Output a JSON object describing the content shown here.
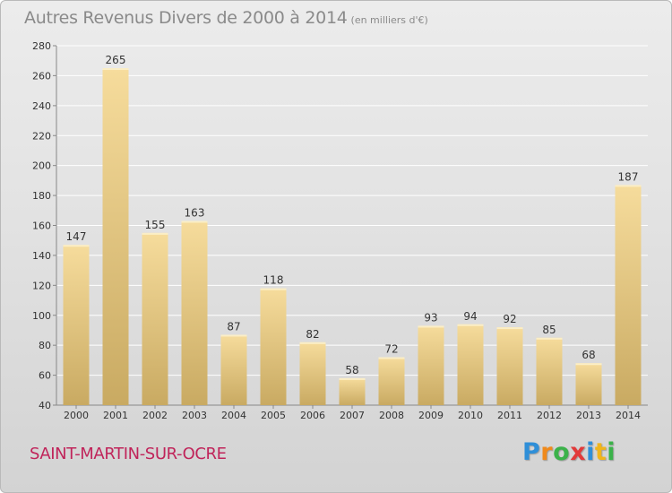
{
  "chart_data": {
    "type": "bar",
    "title": "Autres Revenus Divers de 2000 à 2014",
    "subtitle": "(en milliers d'€)",
    "categories": [
      "2000",
      "2001",
      "2002",
      "2003",
      "2004",
      "2005",
      "2006",
      "2007",
      "2008",
      "2009",
      "2010",
      "2011",
      "2012",
      "2013",
      "2014"
    ],
    "values": [
      147,
      265,
      155,
      163,
      87,
      118,
      82,
      58,
      72,
      93,
      94,
      92,
      85,
      68,
      187
    ],
    "ylim": [
      40,
      280
    ],
    "yticks": [
      40,
      60,
      80,
      100,
      120,
      140,
      160,
      180,
      200,
      220,
      240,
      260,
      280
    ],
    "grid": true,
    "colors": {
      "bar_light": "#f6dc9c",
      "bar_dark": "#c9aa62",
      "grid": "#ffffff",
      "axis": "#888888"
    }
  },
  "footer": {
    "city": "SAINT-MARTIN-SUR-OCRE",
    "city_color": "#c0245a"
  },
  "logo": {
    "text": "Proxiti",
    "letter_colors": [
      "#2f8fd8",
      "#f08a1c",
      "#3bb24a",
      "#e23a3a",
      "#2f8fd8",
      "#f0b51c",
      "#3bb24a"
    ]
  }
}
